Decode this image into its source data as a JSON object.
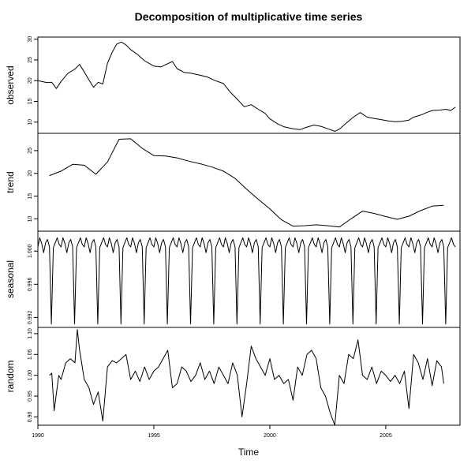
{
  "chart_data": {
    "type": "line",
    "title": "Decomposition of multiplicative time series",
    "xlabel": "Time",
    "xlim": [
      1990,
      2008.2
    ],
    "x_ticks": [
      1990,
      1995,
      2000,
      2005
    ],
    "x_tick_labels": [
      "1990",
      "1995",
      "2000",
      "2005"
    ],
    "panels": [
      {
        "name": "observed",
        "ylabel": "observed",
        "ylim": [
          7.3,
          30.5
        ],
        "y_ticks": [
          10,
          15,
          20,
          25,
          30
        ],
        "y_tick_labels": [
          "10",
          "15",
          "20",
          "25",
          "30"
        ],
        "x": [
          1990.0,
          1990.4,
          1990.6,
          1990.8,
          1991.0,
          1991.3,
          1991.6,
          1991.8,
          1992.0,
          1992.2,
          1992.4,
          1992.6,
          1992.8,
          1993.0,
          1993.2,
          1993.4,
          1993.6,
          1993.8,
          1994.0,
          1994.3,
          1994.6,
          1995.0,
          1995.3,
          1995.6,
          1995.8,
          1996.0,
          1996.3,
          1996.6,
          1997.0,
          1997.3,
          1997.6,
          1998.0,
          1998.3,
          1998.6,
          1998.9,
          1999.2,
          1999.5,
          1999.8,
          2000.0,
          2000.3,
          2000.6,
          2001.0,
          2001.3,
          2001.6,
          2001.9,
          2002.2,
          2002.5,
          2002.8,
          2003.0,
          2003.3,
          2003.6,
          2003.9,
          2004.2,
          2004.5,
          2004.8,
          2005.1,
          2005.4,
          2005.7,
          2006.0,
          2006.2,
          2006.5,
          2006.8,
          2007.0,
          2007.3,
          2007.6,
          2007.8,
          2008.0
        ],
        "y": [
          20.0,
          19.5,
          19.6,
          18.1,
          19.8,
          21.8,
          22.8,
          23.9,
          22.1,
          20.2,
          18.4,
          19.6,
          19.2,
          24.2,
          26.8,
          28.8,
          29.3,
          28.6,
          27.5,
          26.3,
          24.8,
          23.5,
          23.3,
          24.1,
          24.6,
          22.9,
          22.0,
          21.8,
          21.3,
          20.9,
          20.1,
          19.3,
          17.2,
          15.5,
          13.7,
          14.2,
          13.1,
          12.1,
          10.8,
          9.7,
          8.9,
          8.4,
          8.2,
          8.8,
          9.3,
          9.0,
          8.4,
          7.8,
          8.3,
          9.8,
          11.2,
          12.3,
          11.2,
          10.9,
          10.6,
          10.3,
          10.1,
          10.2,
          10.5,
          11.2,
          11.7,
          12.4,
          12.8,
          12.9,
          13.1,
          12.8,
          13.6
        ]
      },
      {
        "name": "trend",
        "ylabel": "trend",
        "ylim": [
          7.3,
          28.8
        ],
        "y_ticks": [
          10,
          15,
          20,
          25
        ],
        "y_tick_labels": [
          "10",
          "15",
          "20",
          "25"
        ],
        "x": [
          1990.5,
          1991.0,
          1991.5,
          1992.0,
          1992.5,
          1993.0,
          1993.5,
          1994.0,
          1994.5,
          1995.0,
          1995.5,
          1996.0,
          1996.5,
          1997.0,
          1997.5,
          1998.0,
          1998.5,
          1999.0,
          1999.5,
          2000.0,
          2000.5,
          2001.0,
          2001.5,
          2002.0,
          2002.5,
          2003.0,
          2003.5,
          2004.0,
          2004.5,
          2005.0,
          2005.5,
          2006.0,
          2006.5,
          2007.0,
          2007.5
        ],
        "y": [
          19.5,
          20.5,
          22.0,
          21.8,
          19.8,
          22.5,
          27.5,
          27.6,
          25.5,
          23.9,
          23.8,
          23.4,
          22.7,
          22.1,
          21.4,
          20.5,
          18.9,
          16.5,
          14.3,
          12.2,
          9.8,
          8.4,
          8.5,
          8.7,
          8.5,
          8.2,
          10.0,
          11.7,
          11.2,
          10.5,
          9.9,
          10.6,
          11.8,
          12.8,
          13.0
        ]
      },
      {
        "name": "seasonal",
        "ylabel": "seasonal",
        "ylim": [
          0.9908,
          1.0024
        ],
        "y_ticks": [
          0.992,
          0.996,
          1.0
        ],
        "y_tick_labels": [
          "0.992",
          "0.996",
          "1.000"
        ],
        "season_start": 1990.0,
        "season_end": 2008.0,
        "season_period": 1,
        "season_pattern": [
          1.0005,
          1.0016,
          1.0009,
          0.9998,
          1.001,
          1.0014,
          1.0005,
          0.9912,
          1.0004,
          1.001,
          1.0016,
          1.0008
        ]
      },
      {
        "name": "random",
        "ylabel": "random",
        "ylim": [
          0.88,
          1.115
        ],
        "y_ticks": [
          0.9,
          0.95,
          1.0,
          1.05,
          1.1
        ],
        "y_tick_labels": [
          "0.90",
          "0.95",
          "1.00",
          "1.05",
          "1.10"
        ],
        "x": [
          1990.5,
          1990.6,
          1990.7,
          1990.9,
          1991.0,
          1991.2,
          1991.4,
          1991.6,
          1991.7,
          1991.8,
          1992.0,
          1992.2,
          1992.4,
          1992.6,
          1992.8,
          1993.0,
          1993.2,
          1993.4,
          1993.6,
          1993.8,
          1994.0,
          1994.2,
          1994.4,
          1994.6,
          1994.8,
          1995.0,
          1995.2,
          1995.4,
          1995.6,
          1995.8,
          1996.0,
          1996.2,
          1996.4,
          1996.6,
          1996.8,
          1997.0,
          1997.2,
          1997.4,
          1997.6,
          1997.8,
          1998.0,
          1998.2,
          1998.4,
          1998.6,
          1998.8,
          1999.0,
          1999.2,
          1999.4,
          1999.6,
          1999.8,
          2000.0,
          2000.2,
          2000.4,
          2000.6,
          2000.8,
          2001.0,
          2001.2,
          2001.4,
          2001.6,
          2001.8,
          2002.0,
          2002.2,
          2002.4,
          2002.6,
          2002.8,
          2003.0,
          2003.2,
          2003.4,
          2003.6,
          2003.8,
          2004.0,
          2004.2,
          2004.4,
          2004.6,
          2004.8,
          2005.0,
          2005.2,
          2005.4,
          2005.6,
          2005.8,
          2006.0,
          2006.2,
          2006.4,
          2006.6,
          2006.8,
          2007.0,
          2007.2,
          2007.4,
          2007.5
        ],
        "y": [
          1.0,
          1.005,
          0.915,
          1.0,
          0.99,
          1.03,
          1.04,
          1.03,
          1.11,
          1.06,
          0.99,
          0.97,
          0.93,
          0.96,
          0.89,
          1.02,
          1.035,
          1.03,
          1.04,
          1.05,
          0.99,
          1.01,
          0.985,
          1.02,
          0.99,
          1.01,
          1.02,
          1.04,
          1.06,
          0.97,
          0.98,
          1.02,
          1.01,
          0.985,
          1.0,
          1.03,
          0.99,
          1.01,
          0.98,
          1.02,
          1.0,
          0.98,
          1.03,
          1.0,
          0.9,
          0.98,
          1.07,
          1.04,
          1.02,
          1.0,
          1.04,
          0.99,
          1.0,
          0.98,
          0.99,
          0.94,
          1.02,
          1.0,
          1.05,
          1.06,
          1.04,
          0.97,
          0.95,
          0.91,
          0.88,
          1.0,
          0.98,
          1.05,
          1.04,
          1.085,
          1.0,
          0.99,
          1.02,
          0.98,
          1.01,
          1.0,
          0.985,
          1.0,
          0.98,
          1.01,
          0.92,
          1.05,
          1.03,
          0.99,
          1.04,
          0.975,
          1.035,
          1.02,
          0.98
        ]
      }
    ],
    "grid": false,
    "legend": "none",
    "line_color": "#000000"
  }
}
